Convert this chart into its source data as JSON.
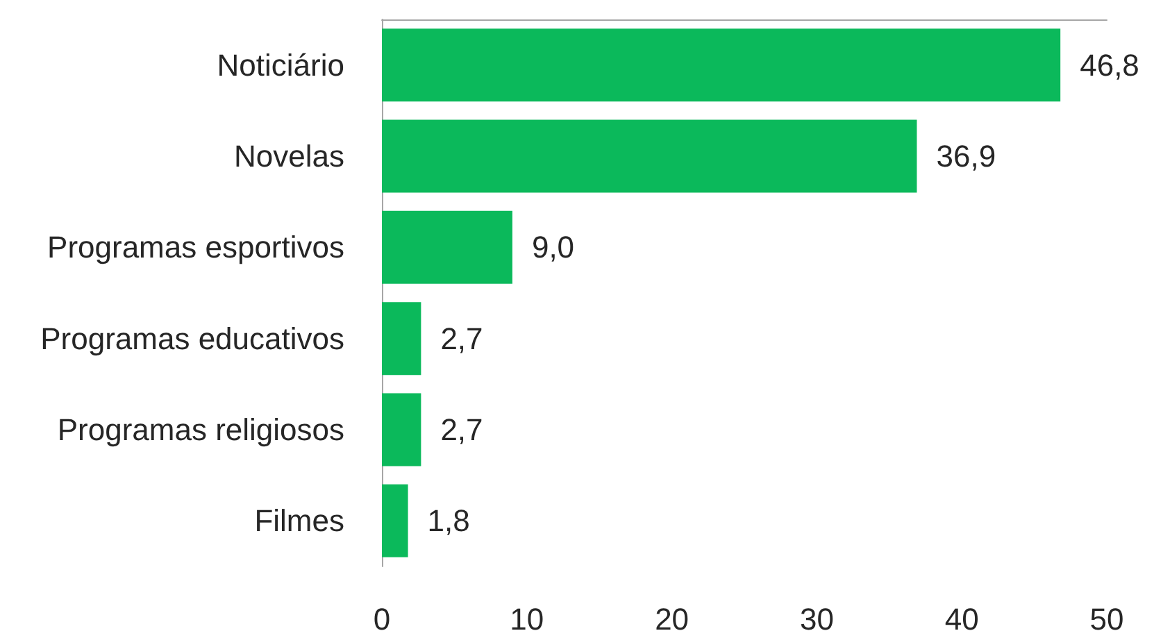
{
  "chart_data": {
    "type": "bar",
    "orientation": "horizontal",
    "categories": [
      "Noticiário",
      "Novelas",
      "Programas esportivos",
      "Programas educativos",
      "Programas religiosos",
      "Filmes"
    ],
    "values": [
      46.8,
      36.9,
      9.0,
      2.7,
      2.7,
      1.8
    ],
    "color": "#0bb95b",
    "value_labels": [
      "46,8",
      "36,9",
      "9,0",
      "2,7",
      "2,7",
      "1,8"
    ],
    "xlim": [
      0,
      50
    ],
    "xticks": [
      0,
      10,
      20,
      30,
      40,
      50
    ],
    "grid": false
  }
}
